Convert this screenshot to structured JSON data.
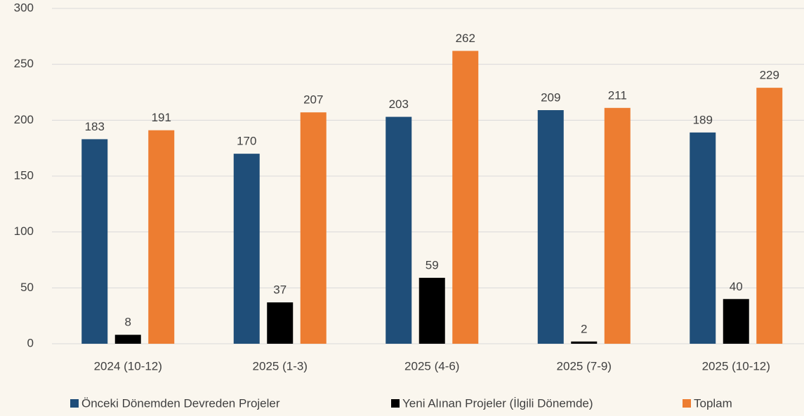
{
  "chart_data": {
    "type": "bar",
    "categories": [
      "2024 (10-12)",
      "2025 (1-3)",
      "2025 (4-6)",
      "2025 (7-9)",
      "2025 (10-12)"
    ],
    "series": [
      {
        "name": "Önceki Dönemden Devreden Projeler",
        "color": "#1f4e79",
        "values": [
          183,
          170,
          203,
          209,
          189
        ]
      },
      {
        "name": "Yeni Alınan Projeler (İlgili Dönemde)",
        "color": "#000000",
        "values": [
          8,
          37,
          59,
          2,
          40
        ]
      },
      {
        "name": "Toplam",
        "color": "#ed7d31",
        "values": [
          191,
          207,
          262,
          211,
          229
        ]
      }
    ],
    "ylim": [
      0,
      300
    ],
    "yticks": [
      0,
      50,
      100,
      150,
      200,
      250,
      300
    ],
    "grid": true,
    "legend": "bottom"
  }
}
